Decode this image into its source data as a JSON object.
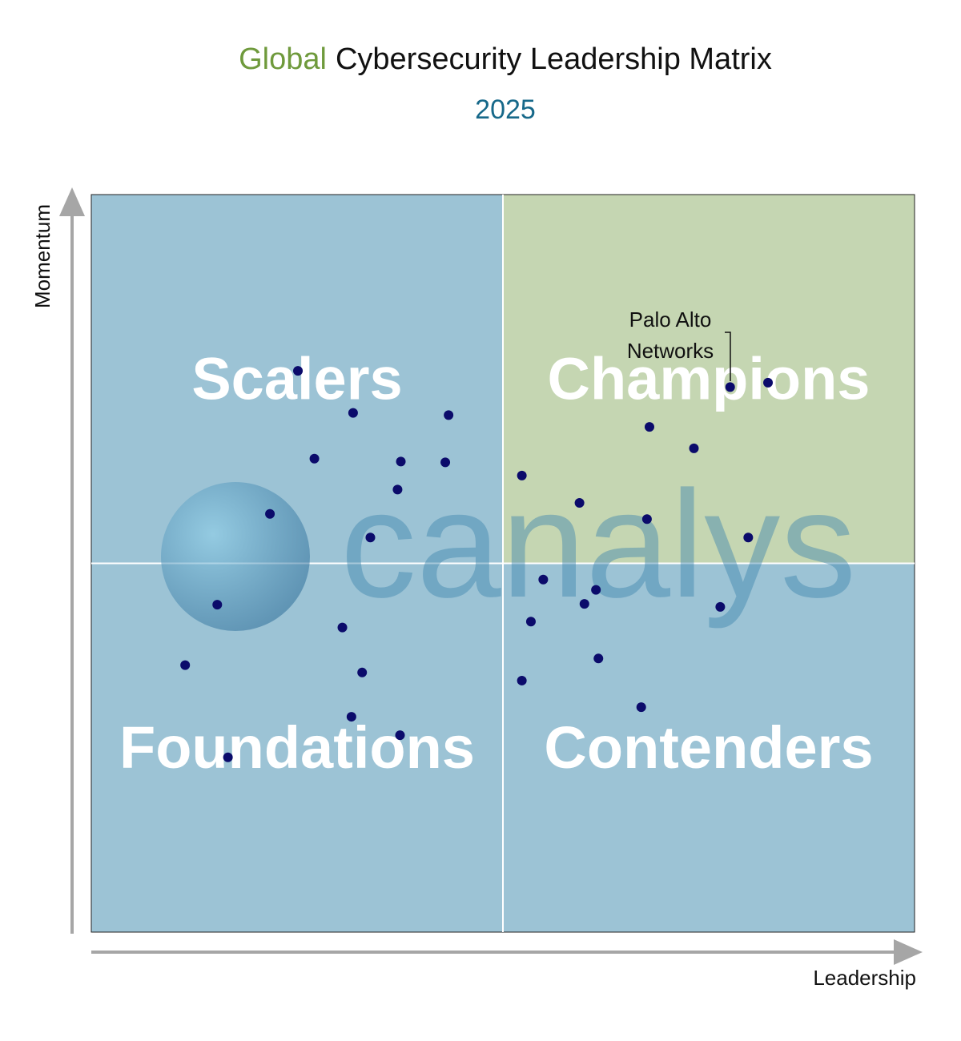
{
  "chart_data": {
    "type": "scatter",
    "title": {
      "highlight": "Global",
      "highlight_color": "#6f9a3c",
      "rest": "Cybersecurity Leadership Matrix"
    },
    "subtitle": "2025",
    "subtitle_color": "#17698a",
    "x_label": "Leadership",
    "y_label": "Momentum",
    "xlim": [
      0,
      100
    ],
    "ylim": [
      0,
      100
    ],
    "quadrants": [
      {
        "label": "Scalers",
        "color": "#9cc3d5"
      },
      {
        "label": "Champions",
        "color": "#c5d6b2"
      },
      {
        "label": "Foundations",
        "color": "#9cc3d5"
      },
      {
        "label": "Contenders",
        "color": "#9cc3d5"
      }
    ],
    "watermark": "canalys",
    "annotation": "Palo Alto Networks",
    "color": "#0b0b6b",
    "x": [
      25.1,
      31.8,
      43.4,
      27.1,
      37.6,
      43.0,
      37.2,
      21.7,
      33.9,
      15.3,
      30.5,
      11.4,
      32.9,
      31.6,
      37.5,
      16.6,
      77.6,
      82.2,
      67.8,
      73.2,
      52.3,
      59.3,
      67.5,
      79.8,
      54.9,
      61.3,
      59.9,
      76.4,
      53.4,
      61.6,
      52.3,
      66.8
    ],
    "y": [
      76.1,
      70.4,
      70.1,
      64.2,
      63.8,
      63.7,
      60.0,
      56.7,
      53.5,
      44.4,
      41.3,
      36.2,
      35.2,
      29.2,
      26.7,
      23.7,
      73.9,
      74.5,
      68.5,
      65.6,
      61.9,
      58.2,
      56.0,
      53.5,
      47.8,
      46.4,
      44.5,
      44.1,
      42.1,
      37.1,
      34.1,
      30.5
    ]
  }
}
